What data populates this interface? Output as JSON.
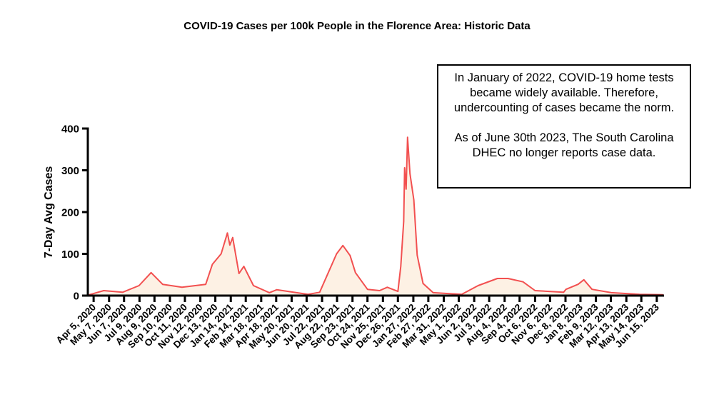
{
  "chart_data": {
    "type": "area",
    "title": "COVID-19 Cases per 100k People in the Florence Area: Historic Data",
    "xlabel": "",
    "ylabel": "7-Day Avg Cases",
    "ylim": [
      0,
      400
    ],
    "yticks": [
      0,
      100,
      200,
      300,
      400
    ],
    "xlim": [
      "2020-03-24",
      "2023-06-30"
    ],
    "xtick_dates": [
      "2020-04-05",
      "2020-05-07",
      "2020-06-07",
      "2020-07-09",
      "2020-08-09",
      "2020-09-10",
      "2020-10-11",
      "2020-11-12",
      "2020-12-13",
      "2021-01-14",
      "2021-02-14",
      "2021-03-18",
      "2021-04-18",
      "2021-05-20",
      "2021-06-20",
      "2021-07-22",
      "2021-08-22",
      "2021-09-23",
      "2021-10-24",
      "2021-11-25",
      "2021-12-26",
      "2022-01-27",
      "2022-02-27",
      "2022-03-31",
      "2022-05-01",
      "2022-06-02",
      "2022-07-03",
      "2022-08-04",
      "2022-09-04",
      "2022-10-06",
      "2022-11-06",
      "2022-12-08",
      "2023-01-08",
      "2023-02-09",
      "2023-03-12",
      "2023-04-13",
      "2023-05-14",
      "2023-06-15"
    ],
    "xtick_labels": [
      "Apr 5, 2020",
      "May 7, 2020",
      "Jun 7, 2020",
      "Jul 9, 2020",
      "Aug 9, 2020",
      "Sep 10, 2020",
      "Oct 11, 2020",
      "Nov 12, 2020",
      "Dec 13, 2020",
      "Jan 14, 2021",
      "Feb 14, 2021",
      "Mar 18, 2021",
      "Apr 18, 2021",
      "May 20, 2021",
      "Jun 20, 2021",
      "Jul 22, 2021",
      "Aug 22, 2021",
      "Sep 23, 2021",
      "Oct 24, 2021",
      "Nov 25, 2021",
      "Dec 26, 2021",
      "Jan 27, 2022",
      "Feb 27, 2022",
      "Mar 31, 2022",
      "May 1, 2022",
      "Jun 2, 2022",
      "Jul 3, 2022",
      "Aug 4, 2022",
      "Sep 4, 2022",
      "Oct 6, 2022",
      "Nov 6, 2022",
      "Dec 8, 2022",
      "Jan 8, 2023",
      "Feb 9, 2023",
      "Mar 12, 2023",
      "Apr 13, 2023",
      "May 14, 2023",
      "Jun 15, 2023"
    ],
    "series": [
      {
        "x": [
          "2020-03-27",
          "2020-04-26",
          "2020-06-04",
          "2020-07-08",
          "2020-08-02",
          "2020-08-26",
          "2020-10-05",
          "2020-11-23",
          "2020-12-07",
          "2020-12-25",
          "2021-01-07",
          "2021-01-12",
          "2021-01-18",
          "2021-01-31",
          "2021-02-10",
          "2021-03-02",
          "2021-04-04",
          "2021-04-19",
          "2021-06-23",
          "2021-07-17",
          "2021-08-21",
          "2021-09-03",
          "2021-09-18",
          "2021-09-29",
          "2021-10-24",
          "2021-11-18",
          "2021-12-04",
          "2021-12-26",
          "2022-01-01",
          "2022-01-07",
          "2022-01-09",
          "2022-01-12",
          "2022-01-15",
          "2022-01-20",
          "2022-01-28",
          "2022-02-04",
          "2022-02-16",
          "2022-03-09",
          "2022-05-07",
          "2022-06-10",
          "2022-07-20",
          "2022-08-11",
          "2022-09-11",
          "2022-10-06",
          "2022-12-04",
          "2022-12-09",
          "2023-01-03",
          "2023-01-15",
          "2023-02-01",
          "2023-03-13",
          "2023-05-10",
          "2023-06-28"
        ],
        "y": [
          2,
          12,
          8,
          24,
          55,
          27,
          20,
          27,
          75,
          100,
          150,
          121,
          139,
          53,
          70,
          24,
          7,
          14,
          3,
          8,
          100,
          120,
          96,
          55,
          15,
          12,
          20,
          10,
          70,
          178,
          306,
          255,
          379,
          292,
          229,
          97,
          29,
          7,
          3,
          24,
          41,
          41,
          33,
          12,
          8,
          15,
          27,
          38,
          15,
          7,
          3,
          2
        ]
      }
    ],
    "colors": {
      "line": "#f25050",
      "fill": "#fdf1e4"
    },
    "grid": false,
    "annotation": {
      "line1": "In January of 2022, COVID-19 home tests became widely available. Therefore, undercounting of cases became the norm.",
      "line2": "As of June 30th 2023, The South Carolina DHEC no longer reports case data."
    }
  }
}
